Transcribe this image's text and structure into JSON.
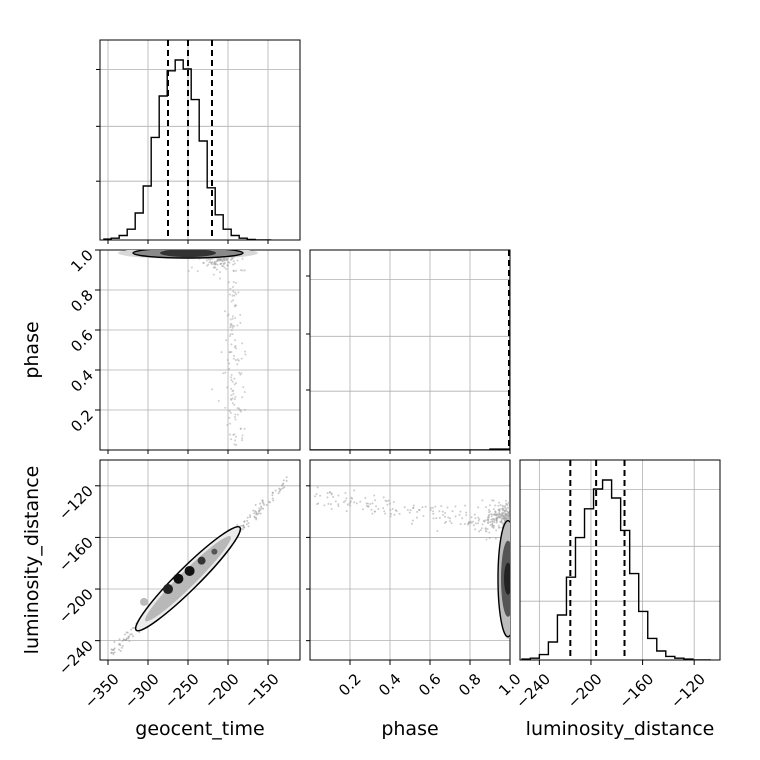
{
  "chart_data": {
    "type": "corner",
    "parameters": [
      "geocent_time",
      "phase",
      "luminosity_distance"
    ],
    "axis_labels": {
      "x": [
        "geocent_time",
        "phase",
        "luminosity_distance"
      ],
      "y": [
        "phase",
        "luminosity_distance"
      ]
    },
    "ranges": {
      "geocent_time": [
        -360,
        -110
      ],
      "phase": [
        0.0,
        1.0
      ],
      "luminosity_distance": [
        -255,
        -100
      ]
    },
    "ticks": {
      "geocent_time": [
        -350,
        -300,
        -250,
        -200,
        -150
      ],
      "phase": [
        0.2,
        0.4,
        0.6,
        0.8,
        1.0
      ],
      "phase_y": [
        0.2,
        0.4,
        0.6,
        0.8,
        1.0
      ],
      "luminosity_distance": [
        -240,
        -200,
        -160,
        -120
      ]
    },
    "tick_labels": {
      "geocent_time": [
        "−350",
        "−300",
        "−250",
        "−200",
        "−150"
      ],
      "phase_x": [
        "0.2",
        "0.4",
        "0.6",
        "0.8",
        "1.0"
      ],
      "phase_y": [
        "0.2",
        "0.4",
        "0.6",
        "0.8",
        "1.0"
      ],
      "luminosity_distance": [
        "−240",
        "−200",
        "−160",
        "−120"
      ]
    },
    "histograms": {
      "geocent_time": {
        "bin_edges": [
          -356,
          -346,
          -336,
          -326,
          -316,
          -306,
          -296,
          -286,
          -276,
          -266,
          -256,
          -246,
          -236,
          -226,
          -216,
          -206,
          -196,
          -186,
          -176,
          -166,
          -156,
          -146
        ],
        "counts": [
          0.5,
          1,
          2.5,
          6,
          15,
          30,
          57,
          80,
          94,
          100,
          95,
          78,
          55,
          29,
          14,
          6,
          2.5,
          1,
          0.3,
          0,
          0
        ]
      },
      "phase": {
        "bin_edges": [
          0.0,
          0.05,
          0.1,
          0.15,
          0.2,
          0.25,
          0.3,
          0.35,
          0.4,
          0.45,
          0.5,
          0.55,
          0.6,
          0.65,
          0.7,
          0.75,
          0.8,
          0.85,
          0.9,
          0.95,
          1.0
        ],
        "counts": [
          0,
          0,
          0,
          0,
          0,
          0,
          0,
          0,
          0,
          0,
          0,
          0,
          0,
          0,
          0,
          0,
          0,
          0,
          0.5,
          0.5,
          100
        ]
      },
      "luminosity_distance": {
        "bin_edges": [
          -254,
          -247,
          -240,
          -233,
          -226,
          -219,
          -212,
          -205,
          -198,
          -191,
          -184,
          -177,
          -170,
          -163,
          -156,
          -149,
          -142,
          -135,
          -128,
          -121,
          -114,
          -107
        ],
        "counts": [
          0.5,
          1,
          3,
          10,
          25,
          46,
          68,
          84,
          95,
          100,
          90,
          72,
          48,
          27,
          12,
          5,
          2,
          1,
          0.5,
          0,
          0
        ]
      }
    },
    "quantiles": {
      "geocent_time": [
        -275,
        -250,
        -220
      ],
      "phase": [
        1.0,
        1.0,
        1.0
      ],
      "luminosity_distance": [
        -216,
        -196,
        -174
      ]
    },
    "grid": true,
    "colors": {
      "line": "#000000",
      "scatter": "#a0a0a0",
      "contour_fill": "#333333",
      "grid": "#b0b0b0"
    }
  }
}
